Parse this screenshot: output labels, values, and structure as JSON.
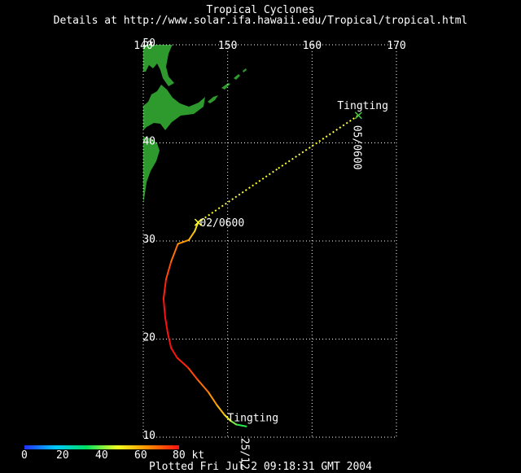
{
  "title": "Tropical Cyclones",
  "subtitle": "Details at http://www.solar.ifa.hawaii.edu/Tropical/tropical.html",
  "footer": "Plotted Fri Jul 2 09:18:31 GMT 2004",
  "map": {
    "lon_range": [
      140,
      170
    ],
    "lat_range": [
      10,
      50
    ],
    "lon_ticks": [
      "140",
      "150",
      "160",
      "170"
    ],
    "lat_ticks": [
      "10",
      "20",
      "30",
      "40",
      "50"
    ],
    "grid": "dotted",
    "background": "#000000",
    "land_color": "#2e9a2e"
  },
  "storm": {
    "name_start": "Tingting",
    "name_end": "Tingting",
    "time_start": "25/12",
    "time_mid": "02/0600",
    "time_end": "05/0600",
    "track": [
      {
        "lon": 152.2,
        "lat": 11.1,
        "kt": 35
      },
      {
        "lon": 151.0,
        "lat": 11.3,
        "kt": 35
      },
      {
        "lon": 150.3,
        "lat": 11.7,
        "kt": 45
      },
      {
        "lon": 149.6,
        "lat": 12.3,
        "kt": 55
      },
      {
        "lon": 148.7,
        "lat": 13.3,
        "kt": 60
      },
      {
        "lon": 147.7,
        "lat": 14.6,
        "kt": 65
      },
      {
        "lon": 146.4,
        "lat": 15.9,
        "kt": 70
      },
      {
        "lon": 145.3,
        "lat": 17.1,
        "kt": 75
      },
      {
        "lon": 144.0,
        "lat": 18.1,
        "kt": 80
      },
      {
        "lon": 143.3,
        "lat": 19.1,
        "kt": 80
      },
      {
        "lon": 142.9,
        "lat": 20.6,
        "kt": 80
      },
      {
        "lon": 142.6,
        "lat": 22.2,
        "kt": 80
      },
      {
        "lon": 142.4,
        "lat": 24.1,
        "kt": 80
      },
      {
        "lon": 142.7,
        "lat": 26.1,
        "kt": 75
      },
      {
        "lon": 143.3,
        "lat": 27.9,
        "kt": 70
      },
      {
        "lon": 144.1,
        "lat": 29.7,
        "kt": 65
      },
      {
        "lon": 145.4,
        "lat": 30.1,
        "kt": 60
      },
      {
        "lon": 146.1,
        "lat": 31.0,
        "kt": 55
      },
      {
        "lon": 146.5,
        "lat": 31.9,
        "kt": 50
      }
    ],
    "forecast": [
      {
        "lon": 146.5,
        "lat": 31.9
      },
      {
        "lon": 156.0,
        "lat": 37.4
      },
      {
        "lon": 165.5,
        "lat": 42.8
      }
    ],
    "forecast_color": "#ffff33"
  },
  "colorbar": {
    "ticks": [
      "0",
      "20",
      "40",
      "60",
      "80 kt"
    ],
    "stops": [
      "#2030ff",
      "#00c8ff",
      "#00e060",
      "#f0ff20",
      "#ff8c00",
      "#ff1010"
    ]
  }
}
